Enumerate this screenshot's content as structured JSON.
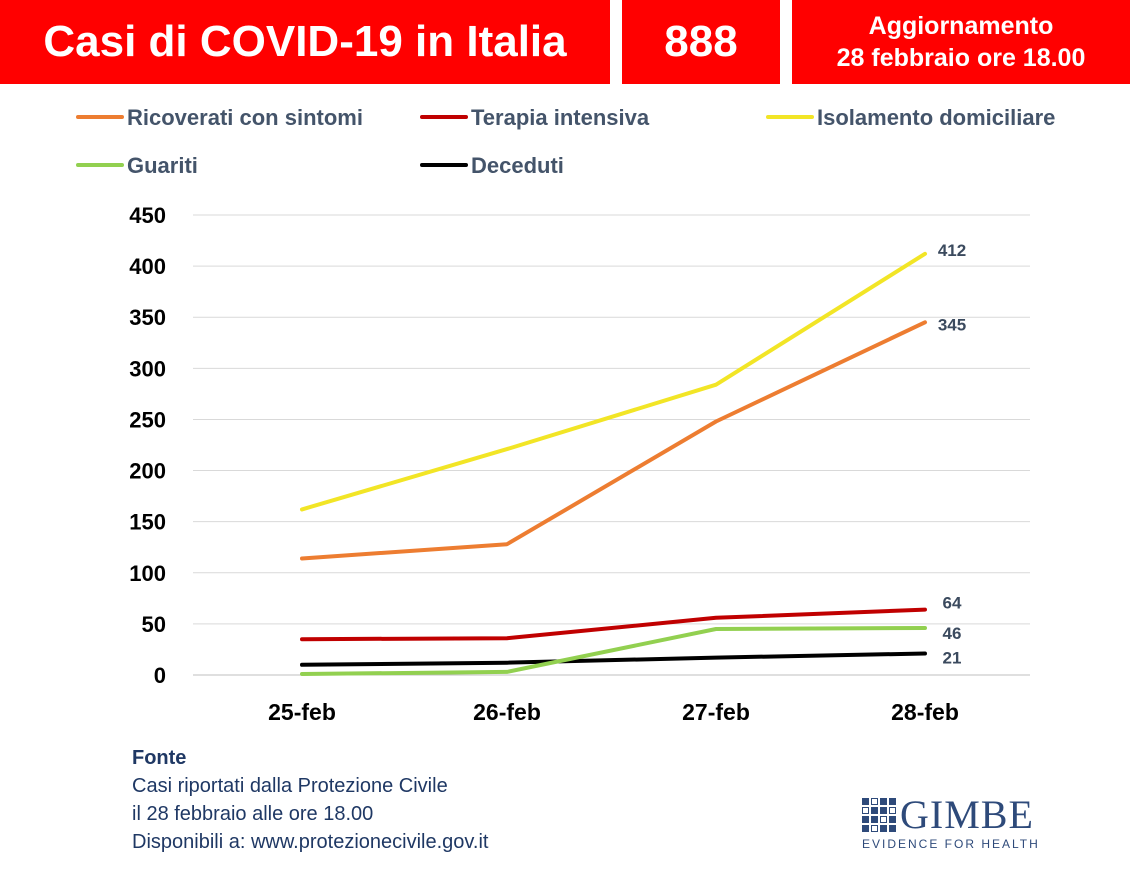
{
  "header": {
    "title": "Casi di COVID-19 in Italia",
    "count": "888",
    "update_line1": "Aggiornamento",
    "update_line2": "28 febbraio ore 18.00",
    "bg_color": "#ff0000"
  },
  "chart_data": {
    "type": "line",
    "categories": [
      "25-feb",
      "26-feb",
      "27-feb",
      "28-feb"
    ],
    "ylim": [
      0,
      450
    ],
    "yticks": [
      0,
      50,
      100,
      150,
      200,
      250,
      300,
      350,
      400,
      450
    ],
    "grid": true,
    "legend_position": "top",
    "series": [
      {
        "name": "Ricoverati con sintomi",
        "color": "#ed7d31",
        "values": [
          114,
          128,
          248,
          345
        ],
        "end_label": "345"
      },
      {
        "name": "Terapia intensiva",
        "color": "#c00000",
        "values": [
          35,
          36,
          56,
          64
        ],
        "end_label": "64"
      },
      {
        "name": "Isolamento domiciliare",
        "color": "#f2e526",
        "values": [
          162,
          221,
          284,
          412
        ],
        "end_label": "412"
      },
      {
        "name": "Guariti",
        "color": "#92d050",
        "values": [
          1,
          3,
          45,
          46
        ],
        "end_label": "46"
      },
      {
        "name": "Deceduti",
        "color": "#000000",
        "values": [
          10,
          12,
          17,
          21
        ],
        "end_label": "21"
      }
    ]
  },
  "source": {
    "title": "Fonte",
    "line1": "Casi riportati dalla Protezione Civile",
    "line2": "il 28 febbraio alle ore 18.00",
    "line3": "Disponibili a: www.protezionecivile.gov.it"
  },
  "logo": {
    "name": "GIMBE",
    "tagline": "EVIDENCE FOR HEALTH"
  }
}
